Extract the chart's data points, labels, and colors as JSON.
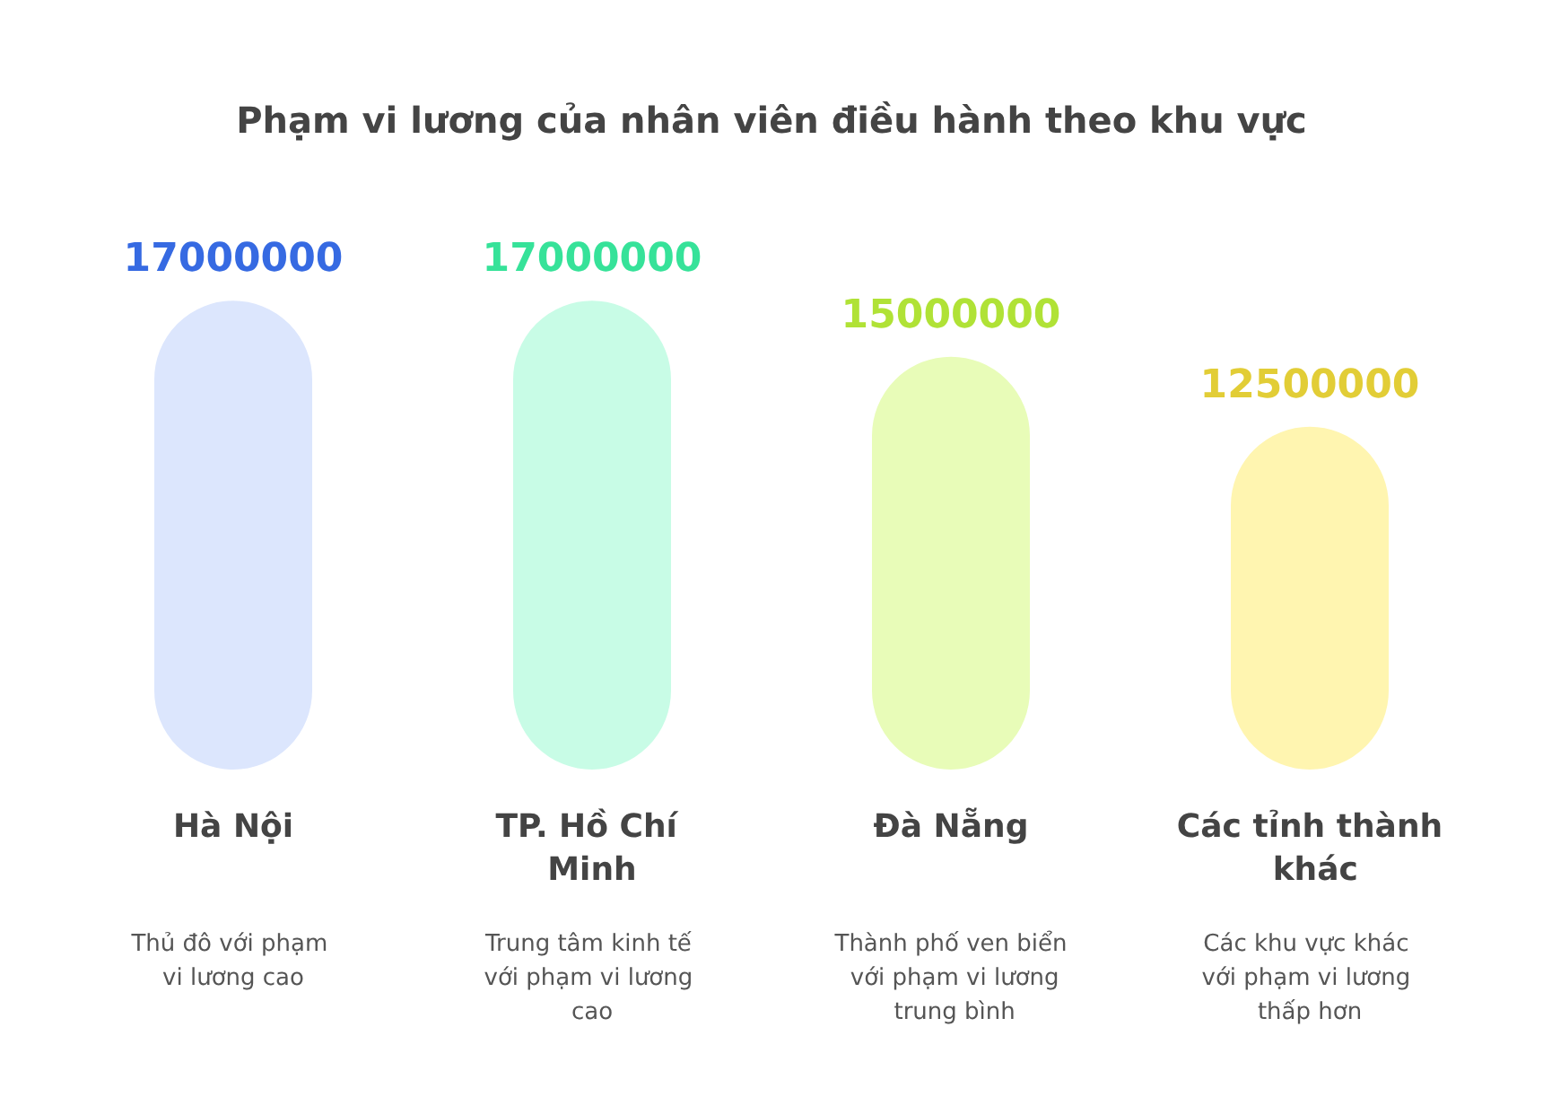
{
  "chart_data": {
    "type": "bar",
    "title": "Phạm vi lương của nhân viên điều hành theo khu vực",
    "categories": [
      "Hà Nội",
      "TP. Hồ Chí Minh",
      "Đà Nẵng",
      "Các tỉnh thành khác"
    ],
    "values": [
      17000000,
      17000000,
      15000000,
      12500000
    ],
    "colors": [
      "#dce6fd",
      "#c8fce6",
      "#e8fcb8",
      "#fff5b0"
    ],
    "data_labels": true,
    "annotations": [
      "Thủ đô với phạm vi lương cao",
      "Trung tâm kinh tế với phạm vi lương cao",
      "Thành phố ven biển với phạm vi lương trung bình",
      "Các khu vực khác với phạm vi lương thấp hơn"
    ]
  }
}
